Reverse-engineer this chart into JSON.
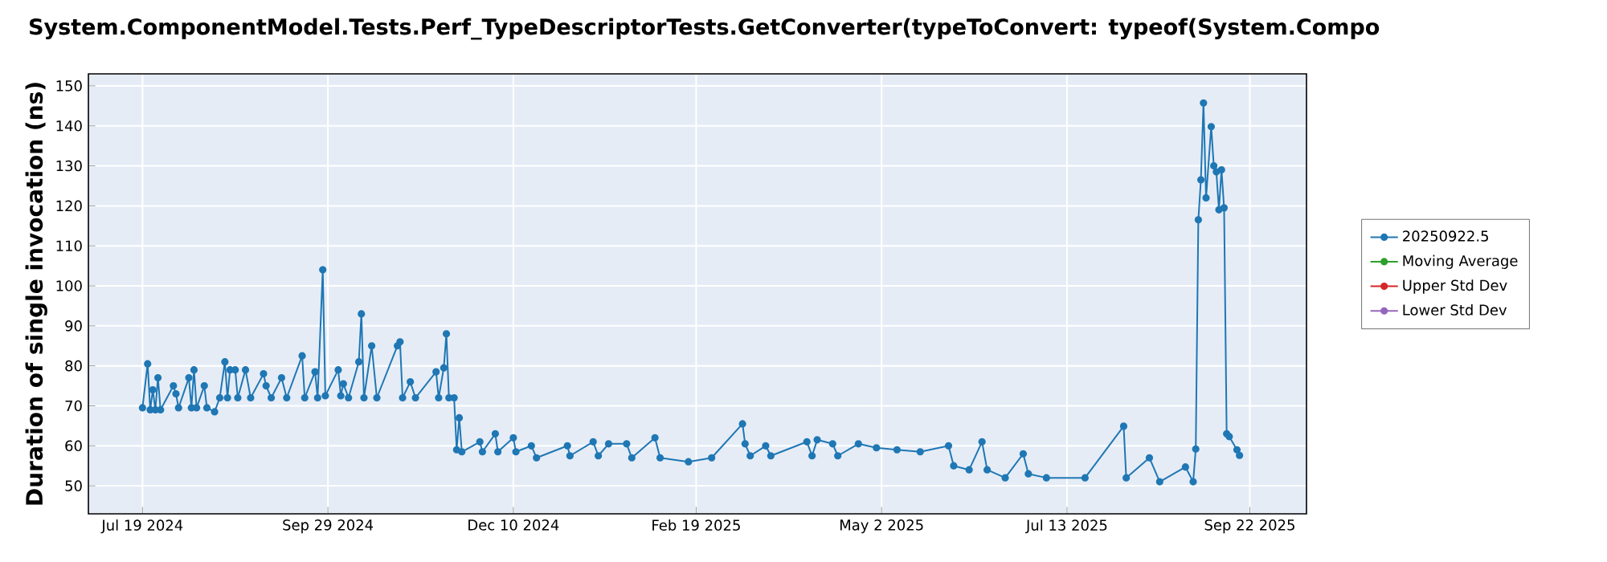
{
  "chart_data": {
    "type": "line",
    "title": "System.ComponentModel.Tests.Perf_TypeDescriptorTests.GetConverter(typeToConvert: typeof(System.Compo",
    "ylabel": "Duration of single invocation (ns)",
    "xlim": [
      "2024-06-28",
      "2025-10-14"
    ],
    "ylim": [
      43,
      153
    ],
    "xticks": [
      {
        "value": "2024-07-19",
        "label": "Jul 19 2024"
      },
      {
        "value": "2024-09-29",
        "label": "Sep 29 2024"
      },
      {
        "value": "2024-12-10",
        "label": "Dec 10 2024"
      },
      {
        "value": "2025-02-19",
        "label": "Feb 19 2025"
      },
      {
        "value": "2025-05-02",
        "label": "May 2 2025"
      },
      {
        "value": "2025-07-13",
        "label": "Jul 13 2025"
      },
      {
        "value": "2025-09-22",
        "label": "Sep 22 2025"
      }
    ],
    "yticks": [
      50,
      60,
      70,
      80,
      90,
      100,
      110,
      120,
      130,
      140,
      150
    ],
    "grid": true,
    "legend": "right",
    "marker": "circle",
    "line_style": "solid",
    "series": [
      {
        "name": "20250922.5",
        "color": "#1f77b4",
        "x": [
          "2024-07-19",
          "2024-07-21",
          "2024-07-22",
          "2024-07-23",
          "2024-07-24",
          "2024-07-25",
          "2024-07-26",
          "2024-07-31",
          "2024-08-01",
          "2024-08-02",
          "2024-08-06",
          "2024-08-07",
          "2024-08-08",
          "2024-08-09",
          "2024-08-12",
          "2024-08-13",
          "2024-08-16",
          "2024-08-18",
          "2024-08-20",
          "2024-08-21",
          "2024-08-22",
          "2024-08-24",
          "2024-08-25",
          "2024-08-28",
          "2024-08-30",
          "2024-09-04",
          "2024-09-05",
          "2024-09-07",
          "2024-09-11",
          "2024-09-13",
          "2024-09-19",
          "2024-09-20",
          "2024-09-24",
          "2024-09-25",
          "2024-09-27",
          "2024-09-28",
          "2024-10-03",
          "2024-10-04",
          "2024-10-05",
          "2024-10-07",
          "2024-10-11",
          "2024-10-12",
          "2024-10-13",
          "2024-10-16",
          "2024-10-18",
          "2024-10-26",
          "2024-10-27",
          "2024-10-28",
          "2024-10-31",
          "2024-11-02",
          "2024-11-10",
          "2024-11-11",
          "2024-11-13",
          "2024-11-14",
          "2024-11-15",
          "2024-11-17",
          "2024-11-18",
          "2024-11-19",
          "2024-11-20",
          "2024-11-27",
          "2024-11-28",
          "2024-12-03",
          "2024-12-04",
          "2024-12-10",
          "2024-12-11",
          "2024-12-17",
          "2024-12-19",
          "2024-12-31",
          "2025-01-01",
          "2025-01-10",
          "2025-01-12",
          "2025-01-16",
          "2025-01-23",
          "2025-01-25",
          "2025-02-03",
          "2025-02-05",
          "2025-02-16",
          "2025-02-25",
          "2025-03-09",
          "2025-03-10",
          "2025-03-12",
          "2025-03-18",
          "2025-03-20",
          "2025-04-03",
          "2025-04-05",
          "2025-04-07",
          "2025-04-13",
          "2025-04-15",
          "2025-04-23",
          "2025-04-30",
          "2025-05-08",
          "2025-05-17",
          "2025-05-28",
          "2025-05-30",
          "2025-06-05",
          "2025-06-10",
          "2025-06-12",
          "2025-06-19",
          "2025-06-26",
          "2025-06-28",
          "2025-07-05",
          "2025-07-20",
          "2025-08-04",
          "2025-08-05",
          "2025-08-14",
          "2025-08-18",
          "2025-08-28",
          "2025-08-31",
          "2025-09-01",
          "2025-09-02",
          "2025-09-03",
          "2025-09-04",
          "2025-09-05",
          "2025-09-07",
          "2025-09-08",
          "2025-09-09",
          "2025-09-10",
          "2025-09-11",
          "2025-09-12",
          "2025-09-13",
          "2025-09-14",
          "2025-09-17",
          "2025-09-18"
        ],
        "values": [
          69.5,
          80.5,
          69,
          74,
          69,
          77,
          69,
          75,
          73,
          69.5,
          77,
          69.5,
          79,
          69.5,
          75,
          69.5,
          68.5,
          72,
          81,
          72,
          79,
          79,
          72,
          79,
          72,
          78,
          75,
          72,
          77,
          72,
          82.5,
          72,
          78.5,
          72,
          104,
          72.5,
          79,
          72.5,
          75.5,
          72,
          81,
          93,
          72,
          85,
          72,
          85,
          86,
          72,
          76,
          72,
          78.5,
          72,
          79.5,
          88,
          72,
          72,
          59,
          67,
          58.5,
          61,
          58.5,
          63,
          58.5,
          62,
          58.5,
          60,
          57,
          60,
          57.5,
          61,
          57.5,
          60.5,
          60.5,
          57,
          62,
          57,
          56,
          57,
          65.5,
          60.5,
          57.5,
          60,
          57.5,
          61,
          57.5,
          61.5,
          60.5,
          57.5,
          60.5,
          59.5,
          59,
          58.5,
          60,
          55,
          54,
          61,
          54,
          52,
          58,
          53,
          52,
          52,
          64.9,
          52,
          57,
          51,
          54.7,
          51,
          59.2,
          116.5,
          126.5,
          145.7,
          122,
          139.8,
          130,
          128.5,
          119,
          129,
          119.5,
          63,
          62.3,
          59,
          57.6
        ]
      },
      {
        "name": "Moving Average",
        "color": "#2ca02c"
      },
      {
        "name": "Upper Std Dev",
        "color": "#d62728"
      },
      {
        "name": "Lower Std Dev",
        "color": "#9467bd"
      }
    ]
  }
}
